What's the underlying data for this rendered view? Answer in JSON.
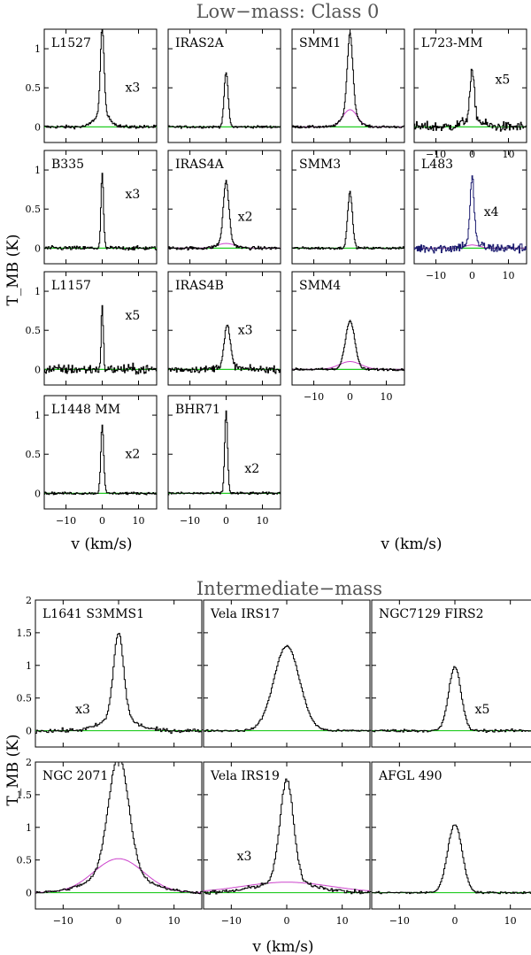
{
  "section_titles": {
    "low_mass": "Low−mass: Class 0",
    "intermediate_mass": "Intermediate−mass"
  },
  "axis_labels": {
    "x_low_left": "v  (km/s)",
    "x_low_right": "v  (km/s)",
    "x_int": "v  (km/s)",
    "y_low": "T_MB  (K)",
    "y_int": "T_MB  (K)"
  },
  "colors": {
    "spectrum": "#000000",
    "baseline": "#22cc22",
    "fit": "#cc44cc",
    "l483_spectrum": "#1a1a6e"
  },
  "chart_data": [
    {
      "group": "Low-mass: Class 0",
      "type": "line",
      "xlabel": "v (km/s)",
      "ylabel": "T_MB (K)",
      "xlim": [
        -16,
        15
      ],
      "ylim": [
        -0.2,
        1.25
      ],
      "xticks": [
        -10,
        0,
        10
      ],
      "yticks": [
        0,
        0.5,
        1
      ],
      "panels": [
        {
          "name": "L1527",
          "scale": "x3",
          "peak": 1.1,
          "center": 0.0,
          "width": 0.5,
          "wing": 0.18,
          "wing_width": 2.0,
          "noise": 0.02,
          "fit_amp": 0,
          "fit_width": 0
        },
        {
          "name": "IRAS2A",
          "scale": "",
          "peak": 0.7,
          "center": 0.0,
          "width": 0.55,
          "wing": 0.0,
          "wing_width": 1.0,
          "noise": 0.015,
          "fit_amp": 0,
          "fit_width": 0
        },
        {
          "name": "SMM1",
          "scale": "",
          "peak": 1.0,
          "center": 0.0,
          "width": 0.75,
          "wing": 0.2,
          "wing_width": 2.0,
          "noise": 0.015,
          "fit_amp": 0.22,
          "fit_width": 2.0
        },
        {
          "name": "L723-MM",
          "scale": "x5",
          "peak": 0.6,
          "center": 0.0,
          "width": 0.6,
          "wing": 0.1,
          "wing_width": 2.5,
          "noise": 0.06,
          "fit_amp": 0,
          "fit_width": 0
        },
        {
          "name": "B335",
          "scale": "x3",
          "peak": 0.95,
          "center": 0.0,
          "width": 0.35,
          "wing": 0.0,
          "wing_width": 1.0,
          "noise": 0.025,
          "fit_amp": 0,
          "fit_width": 0
        },
        {
          "name": "IRAS4A",
          "scale": "x2",
          "peak": 0.78,
          "center": 0.0,
          "width": 0.75,
          "wing": 0.08,
          "wing_width": 2.0,
          "noise": 0.02,
          "fit_amp": 0.06,
          "fit_width": 2.5
        },
        {
          "name": "SMM3",
          "scale": "",
          "peak": 0.72,
          "center": 0.0,
          "width": 0.65,
          "wing": 0.0,
          "wing_width": 1.0,
          "noise": 0.015,
          "fit_amp": 0,
          "fit_width": 0
        },
        {
          "name": "L483",
          "scale": "x4",
          "peak": 0.82,
          "center": 0.0,
          "width": 0.55,
          "wing": 0.08,
          "wing_width": 2.0,
          "noise": 0.06,
          "fit_amp": 0.04,
          "fit_width": 2.0
        },
        {
          "name": "L1157",
          "scale": "x5",
          "peak": 0.78,
          "center": 0.0,
          "width": 0.3,
          "wing": 0.0,
          "wing_width": 1.0,
          "noise": 0.06,
          "fit_amp": 0,
          "fit_width": 0
        },
        {
          "name": "IRAS4B",
          "scale": "x3",
          "peak": 0.5,
          "center": 0.3,
          "width": 0.8,
          "wing": 0.06,
          "wing_width": 2.2,
          "noise": 0.04,
          "fit_amp": 0,
          "fit_width": 0
        },
        {
          "name": "SMM4",
          "scale": "",
          "peak": 0.62,
          "center": 0.0,
          "width": 1.3,
          "wing": 0.0,
          "wing_width": 1.0,
          "noise": 0.015,
          "fit_amp": 0.1,
          "fit_width": 3.0
        },
        {
          "name": "L1448 MM",
          "scale": "x2",
          "peak": 0.88,
          "center": 0.0,
          "width": 0.4,
          "wing": 0.0,
          "wing_width": 1.0,
          "noise": 0.015,
          "fit_amp": 0,
          "fit_width": 0
        },
        {
          "name": "BHR71",
          "scale": "x2",
          "peak": 1.05,
          "center": 0.0,
          "width": 0.4,
          "wing": 0.0,
          "wing_width": 1.0,
          "noise": 0.015,
          "fit_amp": 0,
          "fit_width": 0
        }
      ]
    },
    {
      "group": "Intermediate-mass",
      "type": "line",
      "xlabel": "v (km/s)",
      "ylabel": "T_MB (K)",
      "xlim": [
        -15,
        15
      ],
      "ylim": [
        -0.25,
        2.0
      ],
      "xticks": [
        -10,
        0,
        10
      ],
      "yticks": [
        0,
        0.5,
        1,
        1.5,
        2
      ],
      "panels": [
        {
          "name": "L1641 S3MMS1",
          "scale": "x3",
          "peak": 1.3,
          "center": 0.0,
          "width": 0.9,
          "wing": 0.2,
          "wing_width": 3.0,
          "noise": 0.03,
          "fit_amp": 0,
          "fit_width": 0
        },
        {
          "name": "Vela IRS17",
          "scale": "",
          "peak": 1.3,
          "center": 0.0,
          "width": 2.3,
          "wing": 0.0,
          "wing_width": 1.0,
          "noise": 0.015,
          "fit_amp": 0,
          "fit_width": 0
        },
        {
          "name": "NGC7129 FIRS2",
          "scale": "x5",
          "peak": 0.98,
          "center": 0.0,
          "width": 1.1,
          "wing": 0.0,
          "wing_width": 1.0,
          "noise": 0.02,
          "fit_amp": 0,
          "fit_width": 0
        },
        {
          "name": "NGC 2071",
          "scale": "",
          "peak": 1.8,
          "center": 0.0,
          "width": 1.8,
          "wing": 0.3,
          "wing_width": 5.0,
          "noise": 0.02,
          "fit_amp": 0.52,
          "fit_width": 4.5
        },
        {
          "name": "Vela IRS19",
          "scale": "x3",
          "peak": 1.55,
          "center": 0.0,
          "width": 1.2,
          "wing": 0.18,
          "wing_width": 5.0,
          "noise": 0.03,
          "fit_amp": 0.16,
          "fit_width": 8.0
        },
        {
          "name": "AFGL 490",
          "scale": "",
          "peak": 1.05,
          "center": 0.0,
          "width": 1.3,
          "wing": 0.0,
          "wing_width": 1.0,
          "noise": 0.015,
          "fit_amp": 0,
          "fit_width": 0
        }
      ]
    }
  ]
}
